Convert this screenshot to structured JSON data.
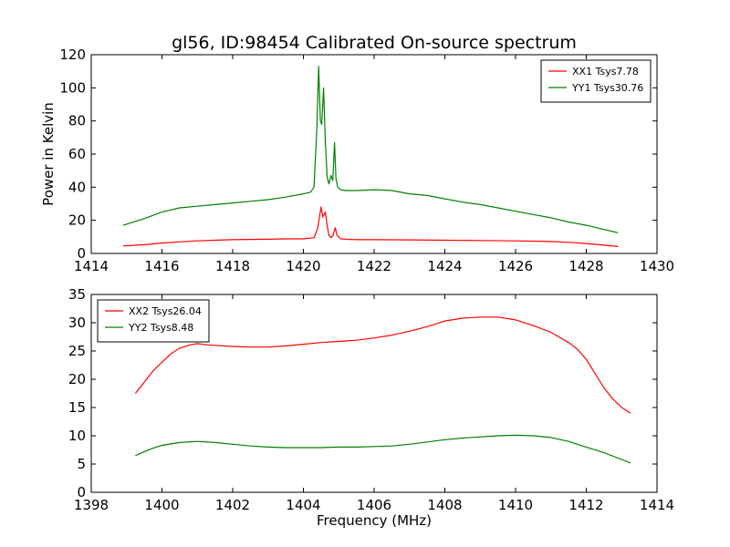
{
  "figure_title": "gl56, ID:98454 Calibrated On-source spectrum",
  "colors": {
    "xx": "#ff0000",
    "yy": "#008000",
    "axes": "#000000",
    "background": "#ffffff"
  },
  "chart_data": [
    {
      "type": "line",
      "title": "gl56, ID:98454 Calibrated On-source spectrum",
      "xlabel": "",
      "ylabel": "Power in Kelvin",
      "xlim": [
        1414,
        1430
      ],
      "ylim": [
        0,
        120
      ],
      "xticks": [
        "1414",
        "1416",
        "1418",
        "1420",
        "1422",
        "1424",
        "1426",
        "1428",
        "1430"
      ],
      "yticks": [
        "0",
        "20",
        "40",
        "60",
        "80",
        "100",
        "120"
      ],
      "grid": false,
      "legend_position": "top-right",
      "series": [
        {
          "name": "XX1 Tsys7.78",
          "color": "#ff0000",
          "x": [
            1414.9,
            1415.5,
            1416.0,
            1416.5,
            1417.0,
            1417.5,
            1418.0,
            1418.5,
            1419.0,
            1419.5,
            1420.0,
            1420.3,
            1420.4,
            1420.5,
            1420.55,
            1420.62,
            1420.67,
            1420.72,
            1420.78,
            1420.83,
            1420.9,
            1420.95,
            1421.05,
            1421.3,
            1421.6,
            1422.0,
            1423.0,
            1424.0,
            1425.0,
            1426.0,
            1427.0,
            1427.5,
            1428.0,
            1428.5,
            1428.9
          ],
          "y": [
            4.5,
            5.3,
            6.3,
            7.0,
            7.6,
            8.0,
            8.3,
            8.5,
            8.6,
            8.8,
            8.8,
            9.5,
            15,
            28,
            22,
            25,
            17,
            11,
            9.5,
            10.5,
            15.5,
            11,
            8.8,
            8.5,
            8.3,
            8.3,
            8.2,
            8.0,
            7.8,
            7.6,
            7.2,
            6.7,
            6.0,
            5.0,
            4.2
          ]
        },
        {
          "name": "YY1 Tsys30.76",
          "color": "#008000",
          "x": [
            1414.9,
            1415.5,
            1416.0,
            1416.5,
            1417.0,
            1417.5,
            1418.0,
            1418.5,
            1419.0,
            1419.5,
            1420.0,
            1420.2,
            1420.3,
            1420.38,
            1420.43,
            1420.48,
            1420.52,
            1420.57,
            1420.62,
            1420.67,
            1420.72,
            1420.78,
            1420.83,
            1420.88,
            1420.92,
            1420.97,
            1421.05,
            1421.2,
            1421.5,
            1422.0,
            1422.5,
            1423.0,
            1423.5,
            1424.0,
            1424.5,
            1425.0,
            1425.5,
            1426.0,
            1426.5,
            1427.0,
            1427.5,
            1428.0,
            1428.5,
            1428.9
          ],
          "y": [
            17,
            21,
            25,
            27.5,
            28.5,
            29.5,
            30.5,
            31.5,
            32.5,
            34,
            36,
            37,
            40,
            75,
            113,
            80,
            78,
            100,
            68,
            46,
            42,
            47,
            44,
            67,
            45,
            40,
            38.5,
            38,
            38,
            38.5,
            38,
            36,
            35,
            33,
            31,
            29.5,
            27.5,
            25.5,
            23.5,
            21.5,
            19,
            17,
            14.5,
            12.5
          ]
        }
      ]
    },
    {
      "type": "line",
      "title": "",
      "xlabel": "Frequency (MHz)",
      "ylabel": "",
      "xlim": [
        1398,
        1414
      ],
      "ylim": [
        0,
        35
      ],
      "xticks": [
        "1398",
        "1400",
        "1402",
        "1404",
        "1406",
        "1408",
        "1410",
        "1412",
        "1414"
      ],
      "yticks": [
        "0",
        "5",
        "10",
        "15",
        "20",
        "25",
        "30",
        "35"
      ],
      "grid": false,
      "legend_position": "top-left",
      "series": [
        {
          "name": "XX2 Tsys26.04",
          "color": "#ff0000",
          "x": [
            1399.25,
            1399.5,
            1399.75,
            1400.0,
            1400.25,
            1400.5,
            1400.75,
            1401.0,
            1401.25,
            1401.5,
            1402.0,
            1402.5,
            1403.0,
            1403.5,
            1404.0,
            1404.5,
            1405.0,
            1405.5,
            1406.0,
            1406.5,
            1407.0,
            1407.5,
            1408.0,
            1408.5,
            1409.0,
            1409.5,
            1410.0,
            1410.5,
            1411.0,
            1411.5,
            1411.75,
            1412.0,
            1412.25,
            1412.5,
            1412.75,
            1413.0,
            1413.25
          ],
          "y": [
            17.5,
            19.5,
            21.5,
            23.0,
            24.5,
            25.5,
            26.0,
            26.3,
            26.1,
            26.0,
            25.8,
            25.7,
            25.7,
            25.9,
            26.2,
            26.5,
            26.7,
            26.9,
            27.3,
            27.8,
            28.5,
            29.3,
            30.3,
            30.8,
            31.0,
            31.0,
            30.5,
            29.5,
            28.3,
            26.5,
            25.3,
            23.5,
            21.0,
            18.5,
            16.5,
            15.0,
            14.0
          ]
        },
        {
          "name": "YY2 Tsys8.48",
          "color": "#008000",
          "x": [
            1399.25,
            1399.5,
            1399.75,
            1400.0,
            1400.5,
            1401.0,
            1401.5,
            1402.0,
            1402.5,
            1403.0,
            1403.5,
            1404.0,
            1404.5,
            1405.0,
            1405.5,
            1406.0,
            1406.5,
            1407.0,
            1407.5,
            1408.0,
            1408.5,
            1409.0,
            1409.5,
            1410.0,
            1410.5,
            1411.0,
            1411.5,
            1412.0,
            1412.5,
            1413.0,
            1413.25
          ],
          "y": [
            6.5,
            7.2,
            7.8,
            8.3,
            8.8,
            9.0,
            8.8,
            8.5,
            8.2,
            8.0,
            7.9,
            7.9,
            7.9,
            8.0,
            8.0,
            8.1,
            8.2,
            8.5,
            8.9,
            9.3,
            9.6,
            9.8,
            10.0,
            10.1,
            10.0,
            9.7,
            9.0,
            8.0,
            7.0,
            5.8,
            5.2
          ]
        }
      ]
    }
  ]
}
